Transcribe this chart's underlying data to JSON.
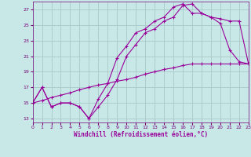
{
  "xlabel": "Windchill (Refroidissement éolien,°C)",
  "bg_color": "#c8e8e8",
  "grid_color": "#aac8c8",
  "line_color": "#990099",
  "ylim": [
    12.5,
    28.0
  ],
  "xlim": [
    0,
    23
  ],
  "yticks": [
    13,
    15,
    17,
    19,
    21,
    23,
    25,
    27
  ],
  "xticks": [
    0,
    1,
    2,
    3,
    4,
    5,
    6,
    7,
    8,
    9,
    10,
    11,
    12,
    13,
    14,
    15,
    16,
    17,
    18,
    19,
    20,
    21,
    22,
    23
  ],
  "line1_x": [
    0,
    1,
    2,
    3,
    4,
    5,
    6,
    7,
    8,
    9,
    10,
    11,
    12,
    13,
    14,
    15,
    16,
    17,
    18,
    19,
    20,
    21,
    22,
    23
  ],
  "line1_y": [
    15,
    17,
    14.5,
    15.0,
    15.0,
    14.5,
    13.0,
    14.5,
    16.0,
    18.0,
    21.0,
    22.5,
    24.0,
    24.5,
    25.5,
    26.0,
    27.5,
    27.7,
    26.5,
    26.0,
    25.2,
    21.8,
    20.3,
    20.0
  ],
  "line2_x": [
    0,
    1,
    2,
    3,
    4,
    5,
    6,
    7,
    8,
    9,
    10,
    11,
    12,
    13,
    14,
    15,
    16,
    17,
    18,
    19,
    20,
    21,
    22,
    23
  ],
  "line2_y": [
    15,
    17,
    14.5,
    15.0,
    15.0,
    14.5,
    13.0,
    15.5,
    17.5,
    20.8,
    22.3,
    24.0,
    24.5,
    25.5,
    26.0,
    27.3,
    27.7,
    26.5,
    26.5,
    26.0,
    25.8,
    25.5,
    25.5,
    20.0
  ],
  "line3_x": [
    0,
    1,
    2,
    3,
    4,
    5,
    6,
    7,
    8,
    9,
    10,
    11,
    12,
    13,
    14,
    15,
    16,
    17,
    18,
    19,
    20,
    21,
    22,
    23
  ],
  "line3_y": [
    15.0,
    15.3,
    15.7,
    16.0,
    16.3,
    16.7,
    17.0,
    17.3,
    17.5,
    17.8,
    18.0,
    18.3,
    18.7,
    19.0,
    19.3,
    19.5,
    19.8,
    20.0,
    20.0,
    20.0,
    20.0,
    20.0,
    20.0,
    20.0
  ]
}
